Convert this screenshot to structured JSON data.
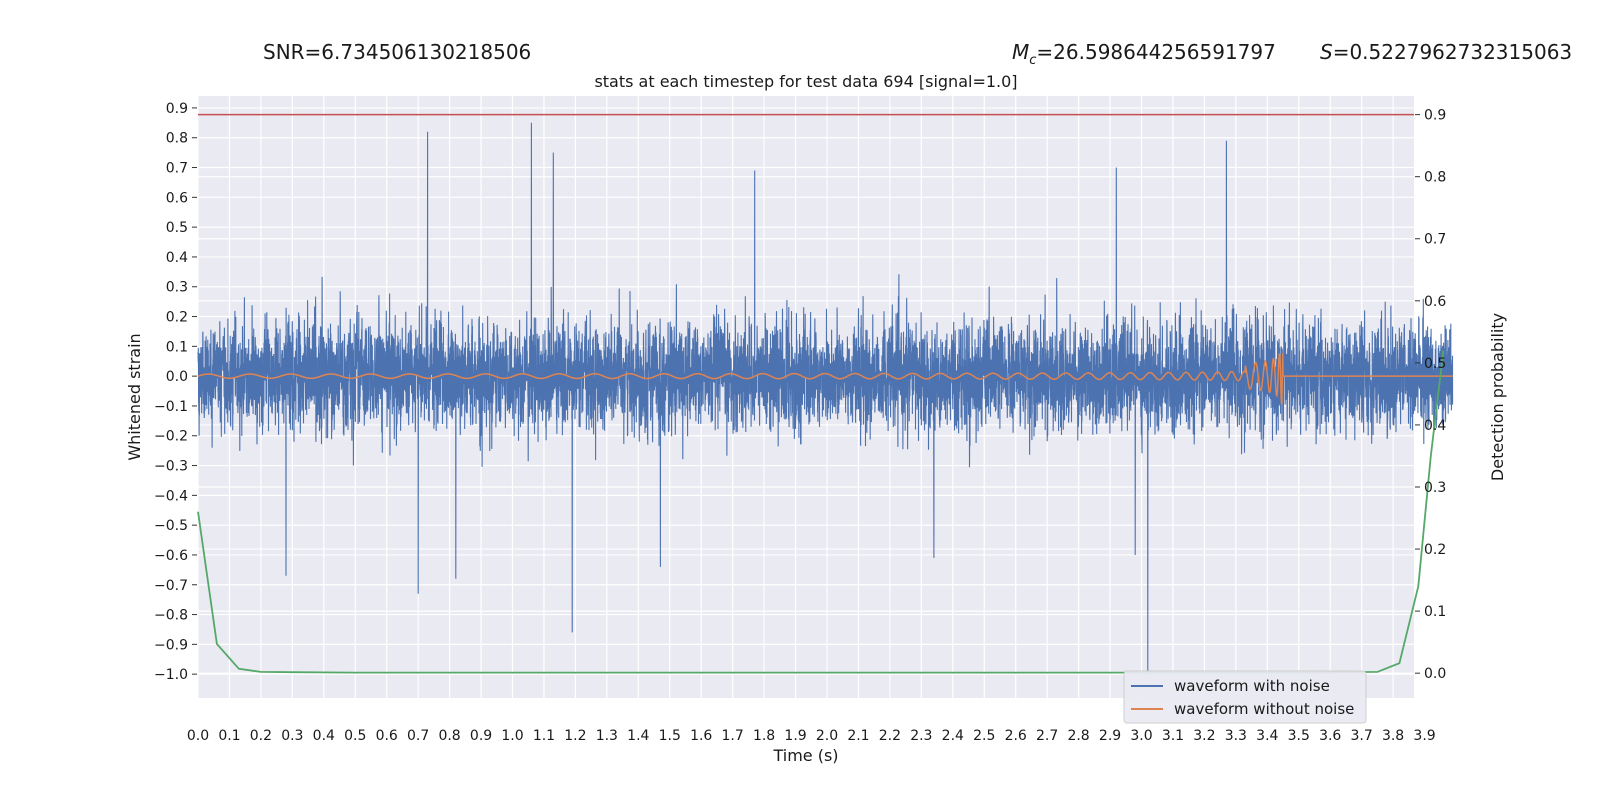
{
  "header": {
    "snr": "SNR=6.734506130218506",
    "mc_symbol": "M",
    "mc_subscript": "c",
    "mc_value": "=26.598644256591797",
    "s_symbol": "S",
    "s_value": "=0.5227962732315063"
  },
  "chart_data": {
    "type": "line",
    "title": "stats at each timestep for test data 694 [signal=1.0]",
    "xlabel": "Time (s)",
    "ylabel_left": "Whitened strain",
    "ylabel_right": "Detection probability",
    "xlim": [
      0.0,
      4.0
    ],
    "ylim_left": [
      -1.08,
      0.94
    ],
    "ylim_right": [
      -0.04,
      0.93
    ],
    "x_ticks": [
      "0.0",
      "0.1",
      "0.2",
      "0.3",
      "0.4",
      "0.5",
      "0.6",
      "0.7",
      "0.8",
      "0.9",
      "1.0",
      "1.1",
      "1.2",
      "1.3",
      "1.4",
      "1.5",
      "1.6",
      "1.7",
      "1.8",
      "1.9",
      "2.0",
      "2.1",
      "2.2",
      "2.3",
      "2.4",
      "2.5",
      "2.6",
      "2.7",
      "2.8",
      "2.9",
      "3.0",
      "3.1",
      "3.2",
      "3.3",
      "3.4",
      "3.5",
      "3.6",
      "3.7",
      "3.8",
      "3.9"
    ],
    "y_ticks_left": [
      "0.9",
      "0.8",
      "0.7",
      "0.6",
      "0.5",
      "0.4",
      "0.3",
      "0.2",
      "0.1",
      "0.0",
      "−0.1",
      "−0.2",
      "−0.3",
      "−0.4",
      "−0.5",
      "−0.6",
      "−0.7",
      "−0.8",
      "−0.9",
      "−1.0"
    ],
    "y_ticks_right": [
      "0.9",
      "0.8",
      "0.7",
      "0.6",
      "0.5",
      "0.4",
      "0.3",
      "0.2",
      "0.1",
      "0.0"
    ],
    "grid": true,
    "legend_position": "bottom-right",
    "colors": {
      "noise": "#4c72b0",
      "clean": "#dd8452",
      "prob": "#55a868",
      "threshold": "#c44e52",
      "background": "#eaeaf2",
      "grid": "#ffffff"
    },
    "series": [
      {
        "name": "waveform with noise",
        "axis": "left",
        "sample_rate_hz": 2048,
        "amplitude_std": 0.16,
        "peaks": [
          {
            "t": 0.73,
            "v": 0.82
          },
          {
            "t": 1.06,
            "v": 0.85
          },
          {
            "t": 1.13,
            "v": 0.75
          },
          {
            "t": 3.27,
            "v": 0.79
          },
          {
            "t": 1.77,
            "v": 0.69
          },
          {
            "t": 2.92,
            "v": 0.7
          },
          {
            "t": 3.02,
            "v": -1.0
          },
          {
            "t": 0.7,
            "v": -0.73
          },
          {
            "t": 1.19,
            "v": -0.86
          },
          {
            "t": 0.28,
            "v": -0.67
          },
          {
            "t": 0.82,
            "v": -0.68
          },
          {
            "t": 2.34,
            "v": -0.61
          },
          {
            "t": 2.98,
            "v": -0.6
          },
          {
            "t": 1.47,
            "v": -0.64
          }
        ]
      },
      {
        "name": "waveform without noise",
        "axis": "left",
        "chirp": {
          "t_start": 0.0,
          "t_merge": 3.45,
          "amp_start": 0.007,
          "amp_peak": 0.28
        }
      },
      {
        "axis": "right",
        "x": [
          0.0,
          0.06,
          0.13,
          0.2,
          0.3,
          0.5,
          1.0,
          2.0,
          3.0,
          3.5,
          3.75,
          3.82,
          3.88,
          3.92,
          3.96
        ],
        "y": [
          0.26,
          0.047,
          0.007,
          0.002,
          0.0015,
          0.001,
          0.001,
          0.001,
          0.001,
          0.001,
          0.002,
          0.016,
          0.14,
          0.35,
          0.52
        ]
      },
      {
        "axis": "right",
        "type": "hline",
        "y": 0.9
      }
    ]
  }
}
